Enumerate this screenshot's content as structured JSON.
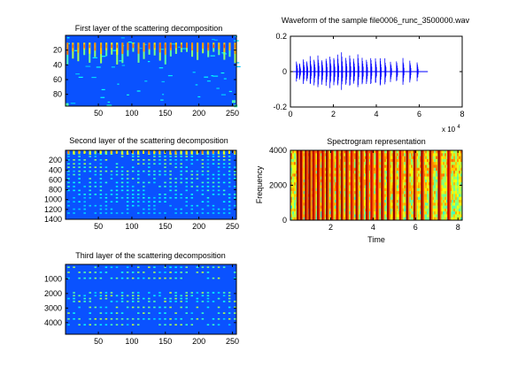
{
  "figure": {
    "background": "#ffffff",
    "axis_color": "#000000"
  },
  "chart_data": [
    {
      "id": "first-layer",
      "type": "heatmap",
      "title": "First layer of the scattering decomposition",
      "xlabel": "",
      "ylabel": "",
      "xlim": [
        1,
        256
      ],
      "ylim": [
        0,
        96
      ],
      "y_reversed": true,
      "xticks": [
        50,
        100,
        150,
        200,
        250
      ],
      "yticks": [
        20,
        40,
        60,
        80
      ],
      "colormap": "jet",
      "base_color": "#0a52ff",
      "bright_columns_x": [
        4,
        12,
        20,
        29,
        37,
        45,
        54,
        62,
        70,
        78,
        86,
        94,
        102,
        110,
        118,
        126,
        134,
        142,
        150,
        158,
        166,
        174,
        182,
        190,
        198,
        206,
        214,
        222,
        230,
        238,
        246,
        254
      ],
      "grid": false
    },
    {
      "id": "waveform",
      "type": "line",
      "title": "Waveform of the sample file0006_runc_3500000.wav",
      "xlabel": "",
      "ylabel": "",
      "xlim": [
        0,
        80000
      ],
      "ylim": [
        -0.2,
        0.2
      ],
      "xticks": [
        0,
        2,
        4,
        6,
        8
      ],
      "yticks": [
        -0.2,
        0,
        0.2
      ],
      "x_multiplier_label": "x 10",
      "x_multiplier_exponent": "4",
      "signal_end": 64000,
      "bursts": [
        {
          "x": 2800,
          "amp": 0.06
        },
        {
          "x": 4200,
          "amp": 0.05
        },
        {
          "x": 6000,
          "amp": 0.07
        },
        {
          "x": 7600,
          "amp": 0.06
        },
        {
          "x": 9200,
          "amp": 0.08
        },
        {
          "x": 11000,
          "amp": 0.07
        },
        {
          "x": 12800,
          "amp": 0.09
        },
        {
          "x": 14600,
          "amp": 0.07
        },
        {
          "x": 16600,
          "amp": 0.08
        },
        {
          "x": 18400,
          "amp": 0.09
        },
        {
          "x": 20200,
          "amp": 0.08
        },
        {
          "x": 22000,
          "amp": 0.09
        },
        {
          "x": 23800,
          "amp": 0.1
        },
        {
          "x": 25800,
          "amp": 0.08
        },
        {
          "x": 27600,
          "amp": 0.09
        },
        {
          "x": 29400,
          "amp": 0.08
        },
        {
          "x": 31400,
          "amp": 0.09
        },
        {
          "x": 33400,
          "amp": 0.08
        },
        {
          "x": 35400,
          "amp": 0.07
        },
        {
          "x": 37400,
          "amp": 0.08
        },
        {
          "x": 39600,
          "amp": 0.07
        },
        {
          "x": 41800,
          "amp": 0.08
        },
        {
          "x": 44000,
          "amp": 0.07
        },
        {
          "x": 46600,
          "amp": 0.06
        },
        {
          "x": 49400,
          "amp": 0.06
        },
        {
          "x": 52400,
          "amp": 0.07
        },
        {
          "x": 55600,
          "amp": 0.06
        },
        {
          "x": 59000,
          "amp": 0.05
        }
      ],
      "line_color": "#0000ff",
      "grid": false
    },
    {
      "id": "second-layer",
      "type": "heatmap",
      "title": "Second layer of the scattering decomposition",
      "xlabel": "",
      "ylabel": "",
      "xlim": [
        1,
        256
      ],
      "ylim": [
        0,
        1400
      ],
      "y_reversed": true,
      "xticks": [
        50,
        100,
        150,
        200,
        250
      ],
      "yticks": [
        200,
        400,
        600,
        800,
        1000,
        1200,
        1400
      ],
      "colormap": "jet",
      "base_color": "#0a52ff",
      "grid": false
    },
    {
      "id": "spectrogram",
      "type": "heatmap",
      "title": "Spectrogram representation",
      "xlabel": "Time",
      "ylabel": "Frequency",
      "xlim": [
        0.1,
        8.2
      ],
      "ylim": [
        0,
        4000
      ],
      "y_reversed": false,
      "xticks": [
        2,
        4,
        6,
        8
      ],
      "yticks": [
        0,
        2000,
        4000
      ],
      "colormap": "jet",
      "burst_times": [
        0.44,
        0.6,
        0.82,
        1.0,
        1.18,
        1.4,
        1.62,
        1.82,
        2.05,
        2.3,
        2.52,
        2.75,
        2.98,
        3.22,
        3.45,
        3.7,
        3.92,
        4.18,
        4.42,
        4.7,
        4.98,
        5.28,
        5.6,
        5.95,
        6.3,
        6.7,
        7.1,
        7.55
      ],
      "grid": false
    },
    {
      "id": "third-layer",
      "type": "heatmap",
      "title": "Third layer of the scattering decomposition",
      "xlabel": "",
      "ylabel": "",
      "xlim": [
        1,
        256
      ],
      "ylim": [
        0,
        4800
      ],
      "y_reversed": true,
      "xticks": [
        50,
        100,
        150,
        200,
        250
      ],
      "yticks": [
        1000,
        2000,
        3000,
        4000
      ],
      "colormap": "jet",
      "base_color": "#0a52ff",
      "grid": false
    }
  ]
}
